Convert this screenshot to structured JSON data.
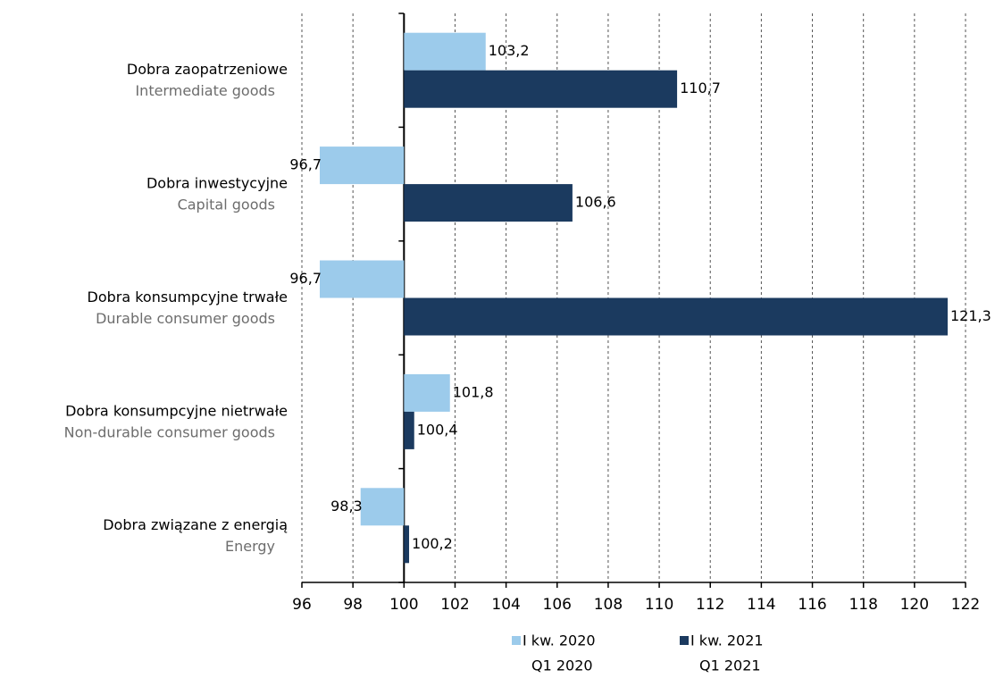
{
  "chart_data": {
    "type": "hbar",
    "categories": [
      "Dobra zaopatrzeniowe",
      "Dobra inwestycyjne",
      "Dobra konsumpcyjne trwałe",
      "Dobra konsumpcyjne nietrwałe",
      "Dobra związane z energią"
    ],
    "categories_en": [
      "Intermediate goods",
      "Capital goods",
      "Durable consumer goods",
      "Non-durable consumer goods",
      "Energy"
    ],
    "baseline": 100,
    "series": [
      {
        "name": "I kw. 2020",
        "name_en": "Q1 2020",
        "color": "#9ccbeb",
        "values": [
          103.2,
          96.7,
          96.7,
          101.8,
          98.3
        ],
        "value_labels": [
          "103,2",
          "96,7",
          "96,7",
          "101,8",
          "98,3"
        ]
      },
      {
        "name": "I kw. 2021",
        "name_en": "Q1 2021",
        "color": "#1b3a5f",
        "values": [
          110.7,
          106.6,
          121.3,
          100.4,
          100.2
        ],
        "value_labels": [
          "110,7",
          "106,6",
          "121,3",
          "100,4",
          "100,2"
        ]
      }
    ],
    "xlim": [
      96,
      122
    ],
    "xticks": [
      96,
      98,
      100,
      102,
      104,
      106,
      108,
      110,
      112,
      114,
      116,
      118,
      120,
      122
    ],
    "grid": true
  }
}
